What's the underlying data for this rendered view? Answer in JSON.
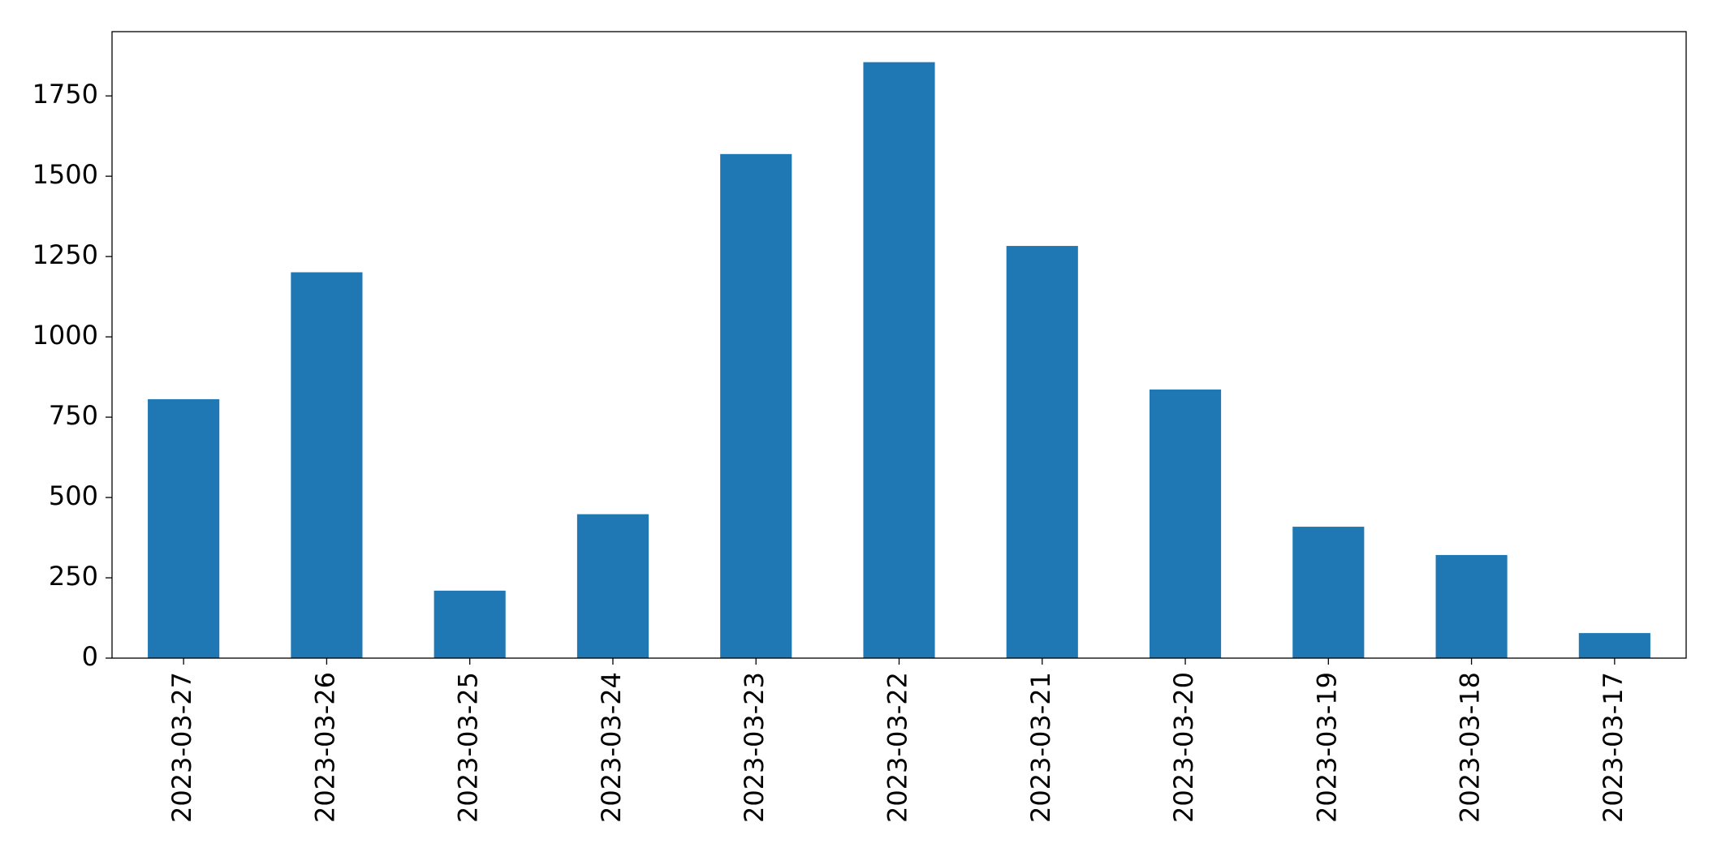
{
  "chart_data": {
    "type": "bar",
    "categories": [
      "2023-03-27",
      "2023-03-26",
      "2023-03-25",
      "2023-03-24",
      "2023-03-23",
      "2023-03-22",
      "2023-03-21",
      "2023-03-20",
      "2023-03-19",
      "2023-03-18",
      "2023-03-17"
    ],
    "values": [
      806,
      1201,
      210,
      448,
      1569,
      1855,
      1283,
      836,
      409,
      321,
      78
    ],
    "color": "#1f77b4",
    "ylim": [
      0,
      1950
    ],
    "yticks": [
      0,
      250,
      500,
      750,
      1000,
      1250,
      1500,
      1750
    ],
    "grid": false
  }
}
